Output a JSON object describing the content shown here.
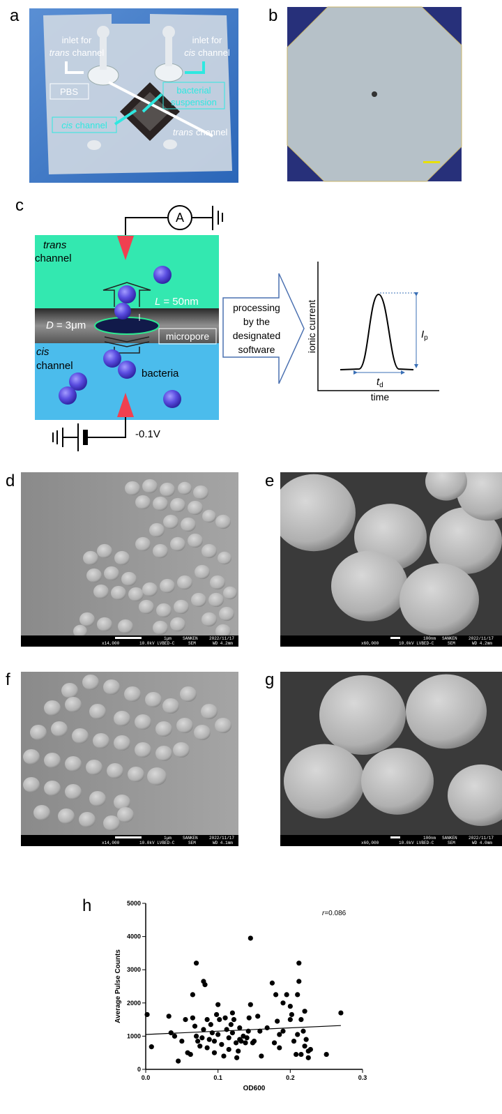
{
  "panel_a": {
    "label": "a",
    "inlet_trans": [
      "inlet for",
      "trans",
      "channel"
    ],
    "inlet_cis": [
      "inlet for",
      "cis",
      "channel"
    ],
    "pbs": "PBS",
    "suspension": [
      "bacterial",
      "suspension"
    ],
    "cis_channel": [
      "cis",
      "channel"
    ],
    "trans_channel": [
      "trans",
      "channel"
    ]
  },
  "panel_b": {
    "label": "b"
  },
  "panel_c": {
    "label": "c",
    "ammeter": "A",
    "trans": [
      "trans",
      "channel"
    ],
    "length": [
      "L",
      "= 50nm"
    ],
    "diameter": [
      "D",
      "= 3μm"
    ],
    "micropore": "micropore",
    "cis": [
      "cis",
      "channel"
    ],
    "bacteria": "bacteria",
    "voltage": "-0.1V",
    "processing": [
      "processing",
      "by the",
      "designated",
      "software"
    ],
    "y_label": "ionic current",
    "x_label": "time",
    "peak": [
      "I",
      "p"
    ],
    "dwell": [
      "t",
      "d"
    ]
  },
  "sem_panels": [
    {
      "label": "d",
      "scale": "1μm",
      "org": "SANKEN",
      "date": "2022/11/17",
      "magnification": "x14,000",
      "voltage": "10.0kV LVBED-C",
      "mode": "SEM",
      "wd": "WD 4.2mm"
    },
    {
      "label": "e",
      "scale": "100nm",
      "org": "SANKEN",
      "date": "2022/11/17",
      "magnification": "x60,000",
      "voltage": "10.0kV LVBED-C",
      "mode": "SEM",
      "wd": "WD 4.2mm"
    },
    {
      "label": "f",
      "scale": "1μm",
      "org": "SANKEN",
      "date": "2022/11/17",
      "magnification": "x14,000",
      "voltage": "10.0kV LVBED-C",
      "mode": "SEM",
      "wd": "WD 4.1mm"
    },
    {
      "label": "g",
      "scale": "100nm",
      "org": "SANKEN",
      "date": "2022/11/17",
      "magnification": "x60,000",
      "voltage": "10.0kV LVBED-C",
      "mode": "SEM",
      "wd": "WD 4.0mm"
    }
  ],
  "panel_h": {
    "label": "h"
  },
  "chart_data": {
    "type": "scatter",
    "x_label": "OD600",
    "y_label": "Average Pulse Counts",
    "annotation": [
      "r",
      "=0.086"
    ],
    "color": "#000000",
    "x": [
      0.002,
      0.008,
      0.032,
      0.035,
      0.04,
      0.045,
      0.05,
      0.055,
      0.058,
      0.062,
      0.065,
      0.065,
      0.068,
      0.07,
      0.07,
      0.072,
      0.075,
      0.078,
      0.08,
      0.08,
      0.082,
      0.085,
      0.085,
      0.088,
      0.09,
      0.092,
      0.095,
      0.095,
      0.098,
      0.1,
      0.1,
      0.102,
      0.105,
      0.108,
      0.11,
      0.112,
      0.115,
      0.115,
      0.118,
      0.12,
      0.12,
      0.122,
      0.125,
      0.126,
      0.128,
      0.13,
      0.13,
      0.132,
      0.135,
      0.138,
      0.14,
      0.142,
      0.143,
      0.145,
      0.145,
      0.148,
      0.15,
      0.155,
      0.158,
      0.16,
      0.168,
      0.175,
      0.178,
      0.18,
      0.182,
      0.185,
      0.185,
      0.19,
      0.19,
      0.195,
      0.2,
      0.2,
      0.202,
      0.205,
      0.208,
      0.21,
      0.21,
      0.212,
      0.212,
      0.215,
      0.215,
      0.218,
      0.22,
      0.22,
      0.222,
      0.225,
      0.225,
      0.228,
      0.25,
      0.27
    ],
    "values": [
      1650,
      680,
      1600,
      1100,
      1000,
      250,
      850,
      1500,
      500,
      450,
      1550,
      2250,
      1300,
      3200,
      1000,
      850,
      700,
      950,
      1200,
      2650,
      2550,
      1500,
      650,
      900,
      1350,
      1100,
      850,
      500,
      1650,
      1050,
      1950,
      1500,
      750,
      400,
      1550,
      1200,
      950,
      600,
      1350,
      1100,
      1700,
      1500,
      800,
      350,
      550,
      1250,
      900,
      850,
      1000,
      800,
      950,
      1150,
      1550,
      1950,
      3950,
      800,
      850,
      1600,
      1150,
      400,
      1250,
      2600,
      800,
      2250,
      1450,
      1050,
      650,
      1150,
      2000,
      2250,
      1900,
      1500,
      1650,
      850,
      450,
      2250,
      1050,
      3200,
      2650,
      1500,
      450,
      1150,
      1750,
      700,
      900,
      550,
      350,
      600,
      450,
      1700
    ],
    "trendline": {
      "x": [
        0,
        0.27
      ],
      "values": [
        1050,
        1320
      ]
    },
    "xlim": [
      0,
      0.3
    ],
    "xticks": [
      {
        "value": 0,
        "label": "0.0"
      },
      0.1,
      0.2,
      0.3
    ],
    "ylim": [
      0,
      5000
    ],
    "yticks": [
      0,
      1000,
      2000,
      3000,
      4000,
      5000
    ]
  }
}
